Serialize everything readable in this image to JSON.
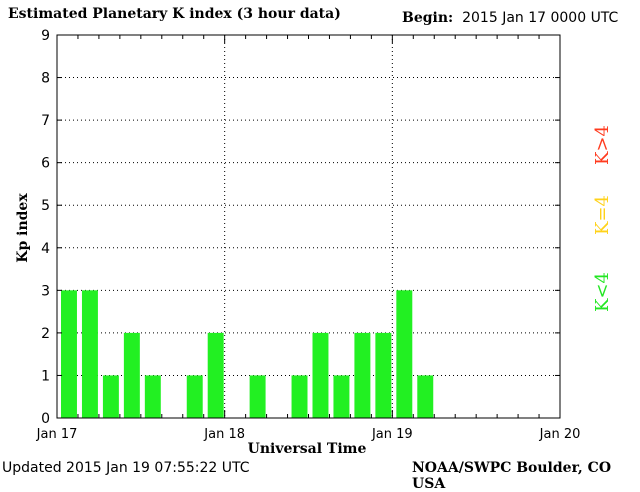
{
  "header": {
    "title": "Estimated Planetary K index (3 hour data)",
    "begin_label": "Begin:",
    "begin_value": "2015 Jan 17 0000 UTC"
  },
  "footer": {
    "updated": "Updated 2015 Jan 19 07:55:22 UTC",
    "source": "NOAA/SWPC Boulder, CO USA"
  },
  "legend": [
    {
      "label": "K>4",
      "color": "#ff3b1f"
    },
    {
      "label": "K=4",
      "color": "#ffd21a"
    },
    {
      "label": "K<4",
      "color": "#22e622"
    }
  ],
  "chart_data": {
    "type": "bar",
    "xlabel": "Universal Time",
    "ylabel": "Kp index",
    "ylim": [
      0,
      9
    ],
    "yticks": [
      0,
      1,
      2,
      3,
      4,
      5,
      6,
      7,
      8,
      9
    ],
    "xticks": [
      "Jan 17",
      "Jan 18",
      "Jan 19",
      "Jan 20"
    ],
    "interval_hours": 3,
    "grid": true,
    "bar_color": "#22f022",
    "values": [
      3,
      3,
      1,
      2,
      1,
      0,
      1,
      2,
      0,
      1,
      0,
      1,
      2,
      1,
      2,
      2,
      3,
      1
    ]
  }
}
